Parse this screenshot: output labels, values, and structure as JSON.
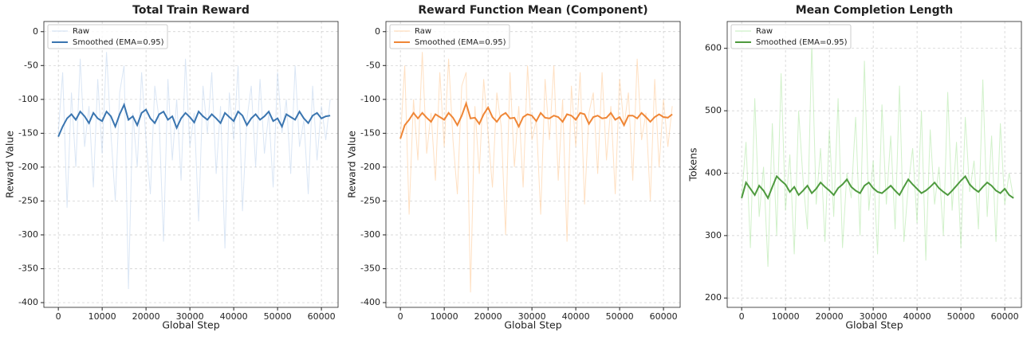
{
  "chart_data": [
    {
      "type": "line",
      "title": "Total Train Reward",
      "xlabel": "Global Step",
      "ylabel": "Reward Value",
      "x": [
        0,
        1000,
        2000,
        3000,
        4000,
        5000,
        6000,
        7000,
        8000,
        9000,
        10000,
        11000,
        12000,
        13000,
        14000,
        15000,
        16000,
        17000,
        18000,
        19000,
        20000,
        21000,
        22000,
        23000,
        24000,
        25000,
        26000,
        27000,
        28000,
        29000,
        30000,
        31000,
        32000,
        33000,
        34000,
        35000,
        36000,
        37000,
        38000,
        39000,
        40000,
        41000,
        42000,
        43000,
        44000,
        45000,
        46000,
        47000,
        48000,
        49000,
        50000,
        51000,
        52000,
        53000,
        54000,
        55000,
        56000,
        57000,
        58000,
        59000,
        60000,
        61000,
        62000
      ],
      "series": [
        {
          "name": "Raw",
          "color": "#aec7e8",
          "values": [
            -150,
            -60,
            -260,
            -90,
            -200,
            -40,
            -170,
            -110,
            -230,
            -70,
            -180,
            -30,
            -150,
            -250,
            -90,
            -50,
            -380,
            -120,
            -200,
            -60,
            -160,
            -240,
            -80,
            -130,
            -310,
            -70,
            -190,
            -100,
            -220,
            -40,
            -170,
            -120,
            -280,
            -80,
            -150,
            -60,
            -210,
            -110,
            -320,
            -90,
            -160,
            -50,
            -265,
            -130,
            -80,
            -200,
            -70,
            -180,
            -120,
            -230,
            -60,
            -150,
            -100,
            -210,
            -50,
            -170,
            -130,
            -240,
            -80,
            -190,
            -110,
            -160,
            -100
          ]
        },
        {
          "name": "Smoothed (EMA=0.95)",
          "color": "#3a75b0",
          "values": [
            -155,
            -140,
            -128,
            -122,
            -130,
            -118,
            -125,
            -135,
            -120,
            -128,
            -132,
            -118,
            -125,
            -140,
            -122,
            -108,
            -130,
            -125,
            -138,
            -120,
            -115,
            -128,
            -135,
            -122,
            -118,
            -130,
            -125,
            -142,
            -128,
            -120,
            -126,
            -134,
            -118,
            -125,
            -130,
            -122,
            -128,
            -135,
            -120,
            -126,
            -132,
            -118,
            -124,
            -138,
            -128,
            -122,
            -130,
            -125,
            -118,
            -132,
            -128,
            -140,
            -122,
            -126,
            -130,
            -118,
            -128,
            -135,
            -124,
            -120,
            -128,
            -125,
            -124
          ]
        }
      ],
      "xlim": [
        -3300,
        63800
      ],
      "ylim": [
        -407,
        15
      ],
      "xticks": [
        0,
        10000,
        20000,
        30000,
        40000,
        50000,
        60000
      ],
      "yticks": [
        0,
        -50,
        -100,
        -150,
        -200,
        -250,
        -300,
        -350,
        -400
      ],
      "grid": true,
      "legend": "upper left"
    },
    {
      "type": "line",
      "title": "Reward Function Mean (Component)",
      "xlabel": "Global Step",
      "ylabel": "Reward Value",
      "x": [
        0,
        1000,
        2000,
        3000,
        4000,
        5000,
        6000,
        7000,
        8000,
        9000,
        10000,
        11000,
        12000,
        13000,
        14000,
        15000,
        16000,
        17000,
        18000,
        19000,
        20000,
        21000,
        22000,
        23000,
        24000,
        25000,
        26000,
        27000,
        28000,
        29000,
        30000,
        31000,
        32000,
        33000,
        34000,
        35000,
        36000,
        37000,
        38000,
        39000,
        40000,
        41000,
        42000,
        43000,
        44000,
        45000,
        46000,
        47000,
        48000,
        49000,
        50000,
        51000,
        52000,
        53000,
        54000,
        55000,
        56000,
        57000,
        58000,
        59000,
        60000,
        61000,
        62000
      ],
      "series": [
        {
          "name": "Raw",
          "color": "#ffbb78",
          "values": [
            -160,
            -50,
            -270,
            -100,
            -190,
            -30,
            -180,
            -120,
            -220,
            -60,
            -170,
            -40,
            -160,
            -240,
            -80,
            -60,
            -385,
            -110,
            -210,
            -70,
            -150,
            -230,
            -90,
            -140,
            -300,
            -60,
            -200,
            -110,
            -230,
            -50,
            -160,
            -130,
            -270,
            -70,
            -160,
            -50,
            -220,
            -100,
            -310,
            -80,
            -170,
            -60,
            -255,
            -120,
            -90,
            -210,
            -60,
            -190,
            -110,
            -240,
            -70,
            -140,
            -90,
            -220,
            -40,
            -160,
            -120,
            -250,
            -70,
            -200,
            -100,
            -170,
            -110
          ]
        },
        {
          "name": "Smoothed (EMA=0.95)",
          "color": "#ef8636",
          "values": [
            -158,
            -138,
            -130,
            -120,
            -128,
            -120,
            -127,
            -133,
            -122,
            -126,
            -130,
            -120,
            -127,
            -138,
            -124,
            -106,
            -128,
            -127,
            -136,
            -122,
            -112,
            -126,
            -133,
            -124,
            -120,
            -128,
            -127,
            -140,
            -126,
            -122,
            -124,
            -132,
            -120,
            -127,
            -128,
            -124,
            -126,
            -133,
            -122,
            -124,
            -130,
            -120,
            -122,
            -136,
            -126,
            -124,
            -128,
            -127,
            -120,
            -130,
            -126,
            -138,
            -124,
            -124,
            -128,
            -120,
            -126,
            -133,
            -126,
            -122,
            -126,
            -127,
            -122
          ]
        }
      ],
      "xlim": [
        -3300,
        63800
      ],
      "ylim": [
        -407,
        15
      ],
      "xticks": [
        0,
        10000,
        20000,
        30000,
        40000,
        50000,
        60000
      ],
      "yticks": [
        0,
        -50,
        -100,
        -150,
        -200,
        -250,
        -300,
        -350,
        -400
      ],
      "grid": true,
      "legend": "upper left"
    },
    {
      "type": "line",
      "title": "Mean Completion Length",
      "xlabel": "Global Step",
      "ylabel": "Tokens",
      "x": [
        0,
        1000,
        2000,
        3000,
        4000,
        5000,
        6000,
        7000,
        8000,
        9000,
        10000,
        11000,
        12000,
        13000,
        14000,
        15000,
        16000,
        17000,
        18000,
        19000,
        20000,
        21000,
        22000,
        23000,
        24000,
        25000,
        26000,
        27000,
        28000,
        29000,
        30000,
        31000,
        32000,
        33000,
        34000,
        35000,
        36000,
        37000,
        38000,
        39000,
        40000,
        41000,
        42000,
        43000,
        44000,
        45000,
        46000,
        47000,
        48000,
        49000,
        50000,
        51000,
        52000,
        53000,
        54000,
        55000,
        56000,
        57000,
        58000,
        59000,
        60000,
        61000,
        62000
      ],
      "series": [
        {
          "name": "Raw",
          "color": "#98df8a",
          "values": [
            360,
            450,
            280,
            520,
            330,
            410,
            250,
            480,
            300,
            560,
            340,
            430,
            270,
            500,
            390,
            310,
            610,
            350,
            440,
            290,
            470,
            330,
            520,
            280,
            400,
            360,
            490,
            300,
            580,
            340,
            420,
            270,
            510,
            350,
            460,
            310,
            540,
            290,
            380,
            440,
            320,
            500,
            260,
            470,
            350,
            410,
            300,
            530,
            340,
            450,
            280,
            490,
            370,
            420,
            310,
            550,
            330,
            460,
            290,
            480,
            350,
            400,
            360
          ]
        },
        {
          "name": "Smoothed (EMA=0.95)",
          "color": "#4e9a3e",
          "values": [
            360,
            385,
            375,
            365,
            380,
            372,
            360,
            378,
            395,
            388,
            382,
            370,
            378,
            365,
            372,
            380,
            368,
            375,
            385,
            378,
            372,
            365,
            376,
            382,
            390,
            378,
            372,
            368,
            380,
            385,
            376,
            370,
            368,
            374,
            380,
            372,
            365,
            378,
            390,
            382,
            375,
            368,
            372,
            378,
            385,
            376,
            370,
            365,
            372,
            380,
            388,
            395,
            382,
            375,
            370,
            378,
            385,
            380,
            372,
            368,
            375,
            365,
            360
          ]
        }
      ],
      "xlim": [
        -3300,
        63800
      ],
      "ylim": [
        185,
        643
      ],
      "xticks": [
        0,
        10000,
        20000,
        30000,
        40000,
        50000,
        60000
      ],
      "yticks": [
        200,
        300,
        400,
        500,
        600
      ],
      "grid": true,
      "legend": "upper left"
    }
  ]
}
